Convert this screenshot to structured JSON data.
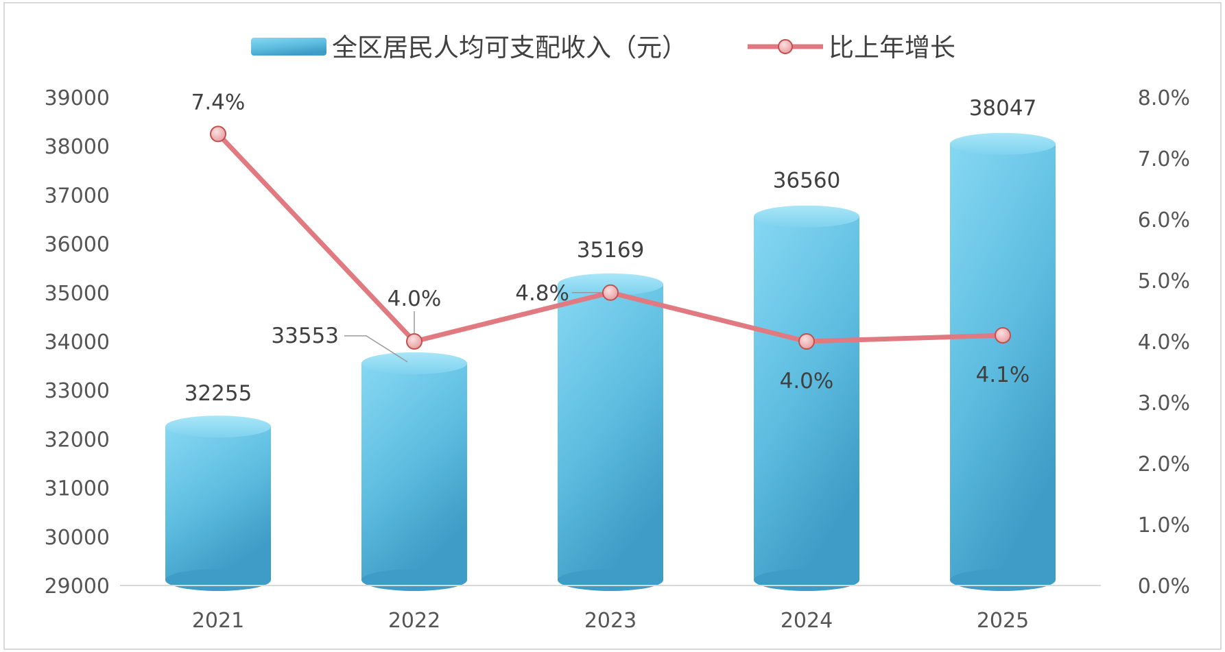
{
  "chart_data": {
    "type": "bar",
    "categories": [
      "2021",
      "2022",
      "2023",
      "2024",
      "2025"
    ],
    "series": [
      {
        "name": "全区居民人均可支配收入（元）",
        "type": "bar",
        "axis": "left",
        "values": [
          32255,
          33553,
          35169,
          36560,
          38047
        ],
        "labels": [
          "32255",
          "33553",
          "35169",
          "36560",
          "38047"
        ],
        "color": "#5bbfe0"
      },
      {
        "name": "比上年增长",
        "type": "line",
        "axis": "right",
        "values": [
          7.4,
          4.0,
          4.8,
          4.0,
          4.1
        ],
        "labels": [
          "7.4%",
          "4.0%",
          "4.8%",
          "4.0%",
          "4.1%"
        ],
        "color": "#e07a80"
      }
    ],
    "y_left": {
      "range": [
        29000,
        39000
      ],
      "ticks": [
        "29000",
        "30000",
        "31000",
        "32000",
        "33000",
        "34000",
        "35000",
        "36000",
        "37000",
        "38000",
        "39000"
      ]
    },
    "y_right": {
      "range": [
        0,
        8
      ],
      "ticks": [
        "0.0%",
        "1.0%",
        "2.0%",
        "3.0%",
        "4.0%",
        "5.0%",
        "6.0%",
        "7.0%",
        "8.0%"
      ]
    },
    "legend": {
      "position": "top"
    },
    "grid": false
  }
}
